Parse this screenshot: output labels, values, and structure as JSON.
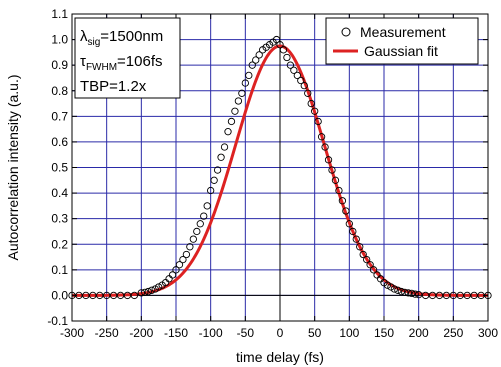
{
  "chart_data": {
    "type": "scatter",
    "xlabel": "time delay (fs)",
    "ylabel": "Autocorrelation intensity (a.u.)",
    "xlim": [
      -300,
      300
    ],
    "ylim": [
      -0.1,
      1.1
    ],
    "xticks": [
      -300,
      -250,
      -200,
      -150,
      -100,
      -50,
      0,
      50,
      100,
      150,
      200,
      250,
      300
    ],
    "yticks": [
      -0.1,
      0.0,
      0.1,
      0.2,
      0.3,
      0.4,
      0.5,
      0.6,
      0.7,
      0.8,
      0.9,
      1.0,
      1.1
    ],
    "xtick_labels": [
      "-300",
      "-250",
      "-200",
      "-150",
      "-100",
      "-50",
      "0",
      "50",
      "100",
      "150",
      "200",
      "250",
      "300"
    ],
    "ytick_labels": [
      "-0.1",
      "0.0",
      "0.1",
      "0.2",
      "0.3",
      "0.4",
      "0.5",
      "0.6",
      "0.7",
      "0.8",
      "0.9",
      "1.0",
      "1.1"
    ],
    "grid": true,
    "legend_position": "top-right",
    "annotation": {
      "line1_main": "λ",
      "line1_sub": "sig",
      "line1_rest": "=1500nm",
      "line2_main": "τ",
      "line2_sub": "FWHM",
      "line2_rest": "=106fs",
      "line3": "TBP=1.2x"
    },
    "series": [
      {
        "name": "Measurement",
        "style": "open-circle",
        "color": "#000000",
        "x": [
          -300,
          -290,
          -280,
          -270,
          -260,
          -250,
          -240,
          -230,
          -220,
          -210,
          -200,
          -195,
          -190,
          -185,
          -180,
          -175,
          -170,
          -165,
          -160,
          -155,
          -150,
          -145,
          -140,
          -135,
          -130,
          -125,
          -120,
          -115,
          -110,
          -105,
          -100,
          -95,
          -90,
          -85,
          -80,
          -75,
          -70,
          -65,
          -60,
          -55,
          -50,
          -45,
          -40,
          -35,
          -30,
          -25,
          -20,
          -15,
          -10,
          -5,
          0,
          5,
          10,
          15,
          20,
          25,
          30,
          35,
          40,
          45,
          50,
          55,
          60,
          65,
          70,
          75,
          80,
          85,
          90,
          95,
          100,
          105,
          110,
          115,
          120,
          125,
          130,
          135,
          140,
          145,
          150,
          155,
          160,
          165,
          170,
          175,
          180,
          185,
          190,
          195,
          200,
          210,
          220,
          230,
          240,
          250,
          260,
          270,
          280,
          290,
          300
        ],
        "y": [
          0.0,
          0.0,
          0.0,
          0.0,
          0.0,
          0.0,
          0.0,
          0.0,
          0.0,
          0.0,
          0.01,
          0.012,
          0.015,
          0.02,
          0.025,
          0.033,
          0.04,
          0.05,
          0.065,
          0.08,
          0.1,
          0.12,
          0.14,
          0.16,
          0.19,
          0.22,
          0.25,
          0.28,
          0.31,
          0.35,
          0.41,
          0.45,
          0.49,
          0.54,
          0.58,
          0.64,
          0.68,
          0.72,
          0.76,
          0.79,
          0.83,
          0.86,
          0.9,
          0.92,
          0.94,
          0.96,
          0.97,
          0.98,
          0.99,
          1.0,
          0.98,
          0.96,
          0.93,
          0.9,
          0.88,
          0.86,
          0.84,
          0.82,
          0.79,
          0.75,
          0.72,
          0.68,
          0.62,
          0.58,
          0.53,
          0.49,
          0.45,
          0.41,
          0.37,
          0.33,
          0.28,
          0.25,
          0.22,
          0.19,
          0.16,
          0.14,
          0.12,
          0.1,
          0.08,
          0.065,
          0.05,
          0.04,
          0.033,
          0.025,
          0.02,
          0.015,
          0.012,
          0.01,
          0.008,
          0.005,
          0.003,
          0.0,
          0.0,
          0.0,
          0.0,
          0.0,
          0.0,
          0.0,
          0.0,
          0.0,
          0.0
        ]
      },
      {
        "name": "Gaussian fit",
        "style": "line",
        "color": "#dd2222",
        "amplitude": 0.975,
        "center": 0,
        "fwhm": 150
      }
    ]
  }
}
